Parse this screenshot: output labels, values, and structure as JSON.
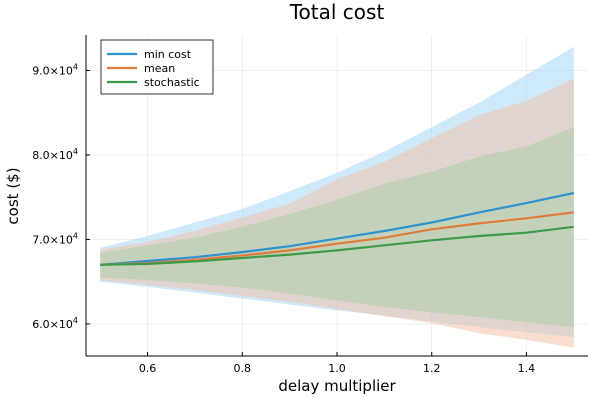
{
  "chart_data": {
    "type": "line",
    "title": "Total cost",
    "xlabel": "delay multiplier",
    "ylabel": "cost ($)",
    "xlim": [
      0.47,
      1.53
    ],
    "ylim": [
      56200,
      94200
    ],
    "x_ticks": [
      0.6,
      0.8,
      1.0,
      1.2,
      1.4
    ],
    "x_tick_labels": [
      "0.6",
      "0.8",
      "1.0",
      "1.2",
      "1.4"
    ],
    "y_ticks": [
      {
        "value": 60000,
        "mantissa": "6.0",
        "base": "×10",
        "exp": "4"
      },
      {
        "value": 70000,
        "mantissa": "7.0",
        "base": "×10",
        "exp": "4"
      },
      {
        "value": 80000,
        "mantissa": "8.0",
        "base": "×10",
        "exp": "4"
      },
      {
        "value": 90000,
        "mantissa": "9.0",
        "base": "×10",
        "exp": "4"
      }
    ],
    "grid": true,
    "legend_position": "top-left",
    "x": [
      0.5,
      0.6,
      0.7,
      0.8,
      0.9,
      1.0,
      1.1,
      1.2,
      1.3,
      1.4,
      1.5
    ],
    "series": [
      {
        "name": "min cost",
        "color": "#2E91D0",
        "band_color": "#9ED3F6",
        "values": [
          67000,
          67450,
          67900,
          68500,
          69200,
          70100,
          71000,
          72000,
          73200,
          74300,
          75500
        ],
        "lower": [
          65000,
          64400,
          63700,
          63000,
          62300,
          61600,
          61000,
          60300,
          59600,
          59000,
          58400
        ],
        "upper": [
          69000,
          70400,
          72000,
          73600,
          75700,
          77900,
          80400,
          83300,
          86200,
          89500,
          92800
        ]
      },
      {
        "name": "mean",
        "color": "#E07B3E",
        "band_color": "#F4BDA0",
        "values": [
          67000,
          67200,
          67600,
          68100,
          68700,
          69500,
          70200,
          71200,
          71900,
          72500,
          73200
        ],
        "lower": [
          65200,
          64600,
          64000,
          63300,
          62600,
          61800,
          60900,
          60100,
          58900,
          58100,
          57200
        ],
        "upper": [
          68800,
          69700,
          71000,
          72600,
          74200,
          77100,
          79200,
          82000,
          84700,
          86400,
          89000
        ]
      },
      {
        "name": "stochastic",
        "color": "#3D9A47",
        "band_color": "#A6CFA8",
        "values": [
          67000,
          67100,
          67400,
          67800,
          68200,
          68700,
          69300,
          69900,
          70400,
          70800,
          71500
        ],
        "lower": [
          65500,
          65200,
          64800,
          64300,
          63600,
          62800,
          62000,
          61400,
          60800,
          60200,
          59600
        ],
        "upper": [
          68400,
          69300,
          70200,
          71500,
          73000,
          74700,
          76600,
          78000,
          79800,
          81000,
          83300
        ]
      }
    ]
  }
}
